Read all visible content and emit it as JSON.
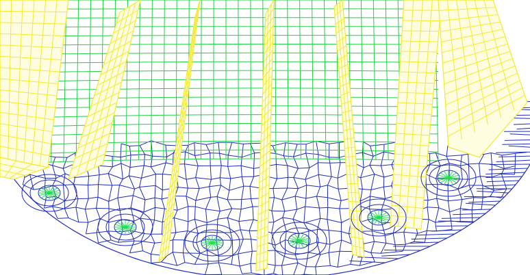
{
  "view": {
    "background": "#ffffff",
    "colors": {
      "base_mesh": "#1f2bb8",
      "core_mesh": "#22d046",
      "fin_mesh": "#f2ea2f",
      "fin_mesh_dark": "#b9b623",
      "hub_spokes": "#1fe04e"
    }
  }
}
